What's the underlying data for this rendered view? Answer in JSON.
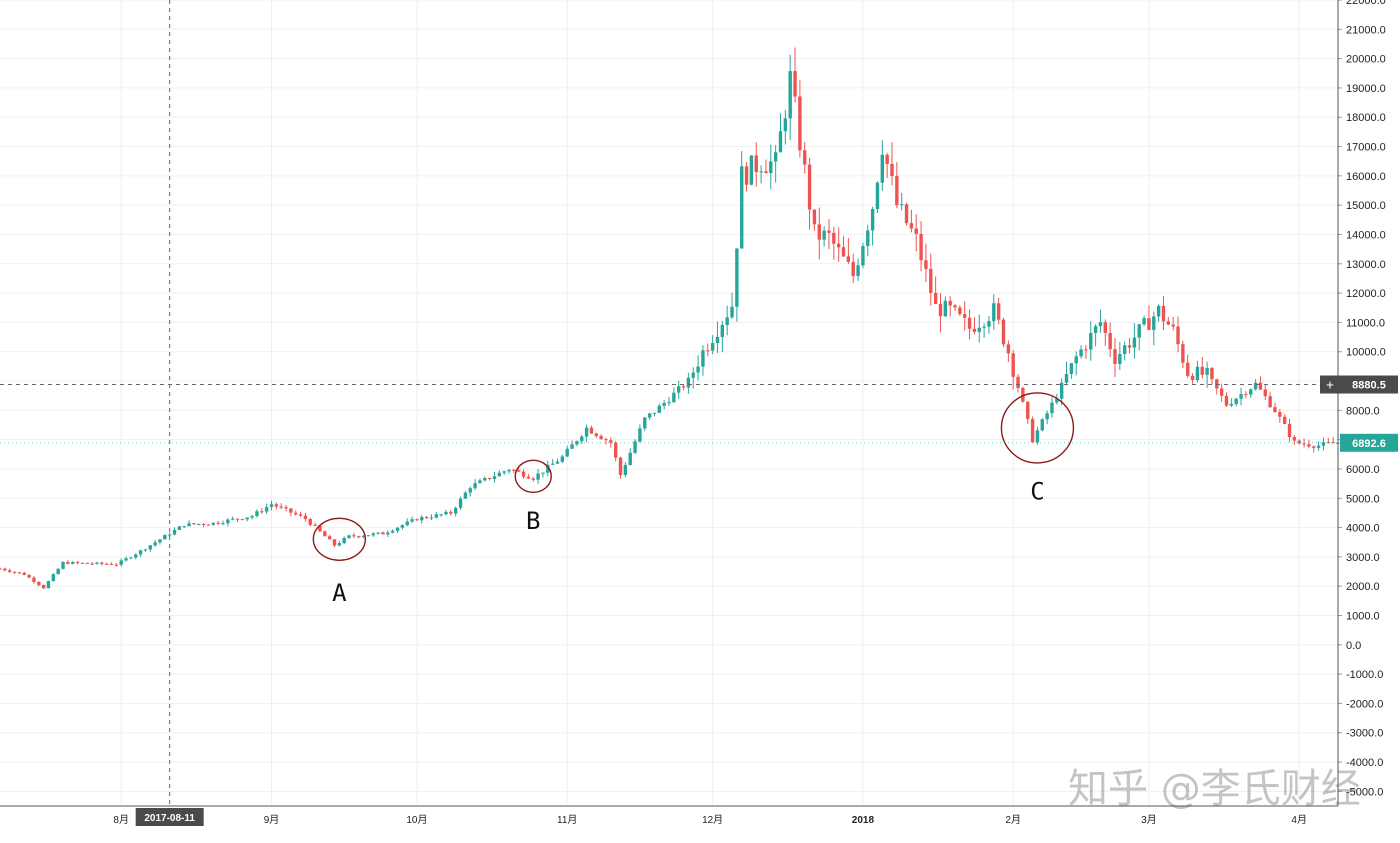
{
  "chart_data": {
    "type": "candlestick",
    "title": "",
    "xlabel": "",
    "ylabel": "",
    "ylim": [
      -5500,
      22000
    ],
    "y_ticks": [
      22000,
      21000,
      20000,
      19000,
      18000,
      17000,
      16000,
      15000,
      14000,
      13000,
      12000,
      11000,
      10000,
      9000,
      8000,
      7000,
      6000,
      5000,
      4000,
      3000,
      2000,
      1000,
      0,
      -1000,
      -2000,
      -3000,
      -4000,
      -5000
    ],
    "x_ticks": [
      {
        "label": "8月",
        "date": "2017-08-01"
      },
      {
        "label": "9月",
        "date": "2017-09-01"
      },
      {
        "label": "10月",
        "date": "2017-10-01"
      },
      {
        "label": "11月",
        "date": "2017-11-01"
      },
      {
        "label": "12月",
        "date": "2017-12-01"
      },
      {
        "label": "2018",
        "date": "2018-01-01"
      },
      {
        "label": "2月",
        "date": "2018-02-01"
      },
      {
        "label": "3月",
        "date": "2018-03-01"
      },
      {
        "label": "4月",
        "date": "2018-04-01"
      }
    ],
    "x_range": [
      "2017-07-07",
      "2018-04-09"
    ],
    "grid": true,
    "crosshair": {
      "date_label": "2017-08-11",
      "date": "2017-08-11",
      "price_label": "8880.5",
      "price": 8880.5
    },
    "last_price": {
      "label": "6892.6",
      "value": 6892.6
    },
    "colors": {
      "up": "#26a69a",
      "down": "#ef5350",
      "last_price_bg": "#26a69a",
      "crosshair_bg": "#4a4a4a",
      "annotation_circle": "#8b1a1a"
    },
    "annotations": [
      {
        "label": "A",
        "date": "2017-09-15",
        "value": 3600,
        "label_value": 1500
      },
      {
        "label": "B",
        "date": "2017-10-25",
        "value": 5750,
        "label_value": 3950
      },
      {
        "label": "C",
        "date": "2018-02-06",
        "value": 7400,
        "label_value": 4950
      }
    ],
    "anchors": [
      [
        "2017-07-07",
        2600
      ],
      [
        "2017-07-12",
        2400
      ],
      [
        "2017-07-16",
        1950
      ],
      [
        "2017-07-20",
        2800
      ],
      [
        "2017-07-31",
        2750
      ],
      [
        "2017-08-05",
        3200
      ],
      [
        "2017-08-14",
        4100
      ],
      [
        "2017-08-20",
        4150
      ],
      [
        "2017-08-28",
        4400
      ],
      [
        "2017-09-01",
        4800
      ],
      [
        "2017-09-08",
        4300
      ],
      [
        "2017-09-14",
        3400
      ],
      [
        "2017-09-17",
        3700
      ],
      [
        "2017-09-24",
        3800
      ],
      [
        "2017-10-01",
        4300
      ],
      [
        "2017-10-08",
        4500
      ],
      [
        "2017-10-12",
        5400
      ],
      [
        "2017-10-20",
        6000
      ],
      [
        "2017-10-25",
        5700
      ],
      [
        "2017-10-31",
        6400
      ],
      [
        "2017-11-05",
        7400
      ],
      [
        "2017-11-10",
        6900
      ],
      [
        "2017-11-12",
        5800
      ],
      [
        "2017-11-17",
        7700
      ],
      [
        "2017-11-20",
        8100
      ],
      [
        "2017-11-26",
        9000
      ],
      [
        "2017-11-29",
        10000
      ],
      [
        "2017-12-05",
        11600
      ],
      [
        "2017-12-07",
        16000
      ],
      [
        "2017-12-11",
        16500
      ],
      [
        "2017-12-14",
        16400
      ],
      [
        "2017-12-17",
        19300
      ],
      [
        "2017-12-22",
        14000
      ],
      [
        "2017-12-25",
        13900
      ],
      [
        "2017-12-30",
        12600
      ],
      [
        "2018-01-03",
        15000
      ],
      [
        "2018-01-05",
        17100
      ],
      [
        "2018-01-08",
        15000
      ],
      [
        "2018-01-12",
        13800
      ],
      [
        "2018-01-16",
        11500
      ],
      [
        "2018-01-19",
        11400
      ],
      [
        "2018-01-23",
        10800
      ],
      [
        "2018-01-28",
        11400
      ],
      [
        "2018-01-31",
        10000
      ],
      [
        "2018-02-05",
        7000
      ],
      [
        "2018-02-10",
        8500
      ],
      [
        "2018-02-14",
        9800
      ],
      [
        "2018-02-19",
        11000
      ],
      [
        "2018-02-22",
        9800
      ],
      [
        "2018-02-26",
        10500
      ],
      [
        "2018-03-03",
        11400
      ],
      [
        "2018-03-06",
        10700
      ],
      [
        "2018-03-09",
        9300
      ],
      [
        "2018-03-13",
        9200
      ],
      [
        "2018-03-17",
        8200
      ],
      [
        "2018-03-23",
        8900
      ],
      [
        "2018-03-27",
        8000
      ],
      [
        "2018-03-31",
        6900
      ],
      [
        "2018-04-05",
        6800
      ],
      [
        "2018-04-09",
        6900
      ]
    ]
  },
  "watermark": "知乎 @李氏财经"
}
